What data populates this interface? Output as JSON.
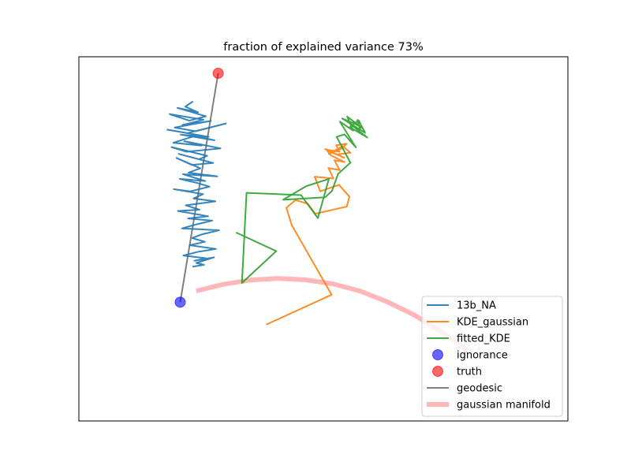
{
  "chart_data": {
    "type": "line",
    "title": "fraction of explained variance 73%",
    "xlabel": "",
    "ylabel": "",
    "xlim": [
      0,
      100
    ],
    "ylim": [
      0,
      100
    ],
    "grid": false,
    "ticks_visible": false,
    "legend_placement": "lower right",
    "series": [
      {
        "name": "13b_NA",
        "kind": "line",
        "color": "#1f77b4",
        "x": [
          21.5,
          19.8,
          22.6,
          18.1,
          24.3,
          20.7,
          16.4,
          23.8,
          19.2,
          25.4,
          17.5,
          22.1,
          28.7,
          20.3,
          15.9,
          24.9,
          18.8,
          26.2,
          21.9,
          17.2,
          23.4,
          19.6,
          27.5,
          20.1,
          16.8,
          24.6,
          22.8,
          18.4,
          25.9,
          21.2,
          17.9,
          23.1,
          20.5,
          26.8,
          19.3,
          24.2,
          18.6,
          22.4,
          25.1,
          20.9,
          17.3,
          23.7,
          21.6,
          26.4,
          19.9,
          22.9,
          18.2,
          24.8,
          20.4,
          25.7,
          22.3,
          19.1,
          27.2,
          23.5,
          21.3,
          24.1,
          20.8,
          26.5,
          22.7,
          19.4,
          24.4,
          21.8,
          26.1,
          22.2,
          23.9,
          21.4
        ],
        "y": [
          91,
          89.3,
          87.5,
          88.9,
          86.2,
          84.8,
          86.9,
          85.1,
          83.4,
          84.7,
          82.6,
          81.4,
          83.9,
          80.8,
          81.9,
          79.6,
          80.3,
          78.5,
          79.9,
          77.7,
          76.8,
          78.2,
          75.9,
          74.8,
          76.3,
          73.5,
          72.4,
          74.1,
          71.2,
          70.6,
          72.8,
          69.5,
          68.1,
          66.9,
          67.6,
          65.4,
          66.1,
          64.8,
          63.6,
          62.1,
          62.8,
          61.2,
          59.8,
          58.9,
          57.6,
          56.2,
          55.8,
          54.1,
          53.4,
          52.7,
          51.5,
          50.2,
          49.6,
          48.3,
          47.1,
          45.9,
          44.8,
          43.6,
          42.7,
          41.5,
          40.6,
          39.8,
          40.9,
          39.1,
          38.5,
          37.9
        ]
      },
      {
        "name": "KDE_gaussian",
        "kind": "line",
        "color": "#ff7f0e",
        "x": [
          37.5,
          51.8,
          43.1,
          41.9,
          43.9,
          46.6,
          48.2,
          55.1,
          55.7,
          53.4,
          49.3,
          48.1,
          52.2,
          51.1,
          53.6,
          52.4,
          54.6,
          51.7,
          50.6,
          53.5,
          52.8,
          55.1,
          53.9,
          51.2,
          54.2,
          55.9,
          52.9,
          50.4,
          54.7
        ],
        "y": [
          19.3,
          28.9,
          51.2,
          56.8,
          59.3,
          58.1,
          54.9,
          57.2,
          60.4,
          64.2,
          62.1,
          66.8,
          66.2,
          69.6,
          68.9,
          72.1,
          71.5,
          73.6,
          75.5,
          74.8,
          76.9,
          77.4,
          75.8,
          74.1,
          76.6,
          74.5,
          73.9,
          75.7,
          72.8
        ]
      },
      {
        "name": "fitted_KDE",
        "kind": "line",
        "color": "#2ca02c",
        "x": [
          30.9,
          39.7,
          32.2,
          33.2,
          45.1,
          48.8,
          51.2,
          46.3,
          41.2,
          50.4,
          51.9,
          53.2,
          55.9,
          52.9,
          54.6,
          57.1,
          53.6,
          56.5,
          55.2,
          58.6,
          56.9,
          54.1,
          59.1,
          57.7,
          55.8,
          59.6,
          56.4,
          58.1,
          57.4
        ],
        "y": [
          48.9,
          42.9,
          32.7,
          61.6,
          60.9,
          53.5,
          66.1,
          63.8,
          59.4,
          60.2,
          62.3,
          67.7,
          71.3,
          79.6,
          80.4,
          76.2,
          84.5,
          81.6,
          86.1,
          82.3,
          83.8,
          85.5,
          80.9,
          84.9,
          82.7,
          79.4,
          83.1,
          81.8,
          85.2
        ]
      },
      {
        "name": "ignorance",
        "kind": "point",
        "color": "#0000ff",
        "x": [
          18.7
        ],
        "y": [
          26.5
        ]
      },
      {
        "name": "truth",
        "kind": "point",
        "color": "#ff0000",
        "x": [
          27.0
        ],
        "y": [
          100.0
        ]
      },
      {
        "name": "geodesic",
        "kind": "line",
        "color": "#000000",
        "x": [
          18.7,
          27.0
        ],
        "y": [
          26.5,
          100.0
        ]
      },
      {
        "name": "gaussian manifold",
        "kind": "thick-line",
        "color": "#ff9999",
        "x": [
          22.2,
          28.0,
          34.0,
          40.0,
          46.0,
          52.0,
          58.0,
          64.0,
          70.0,
          76.0,
          81.5
        ],
        "y": [
          30.1,
          32.2,
          33.6,
          34.1,
          33.7,
          32.4,
          30.1,
          26.6,
          22.3,
          16.8,
          10.8
        ]
      }
    ]
  }
}
